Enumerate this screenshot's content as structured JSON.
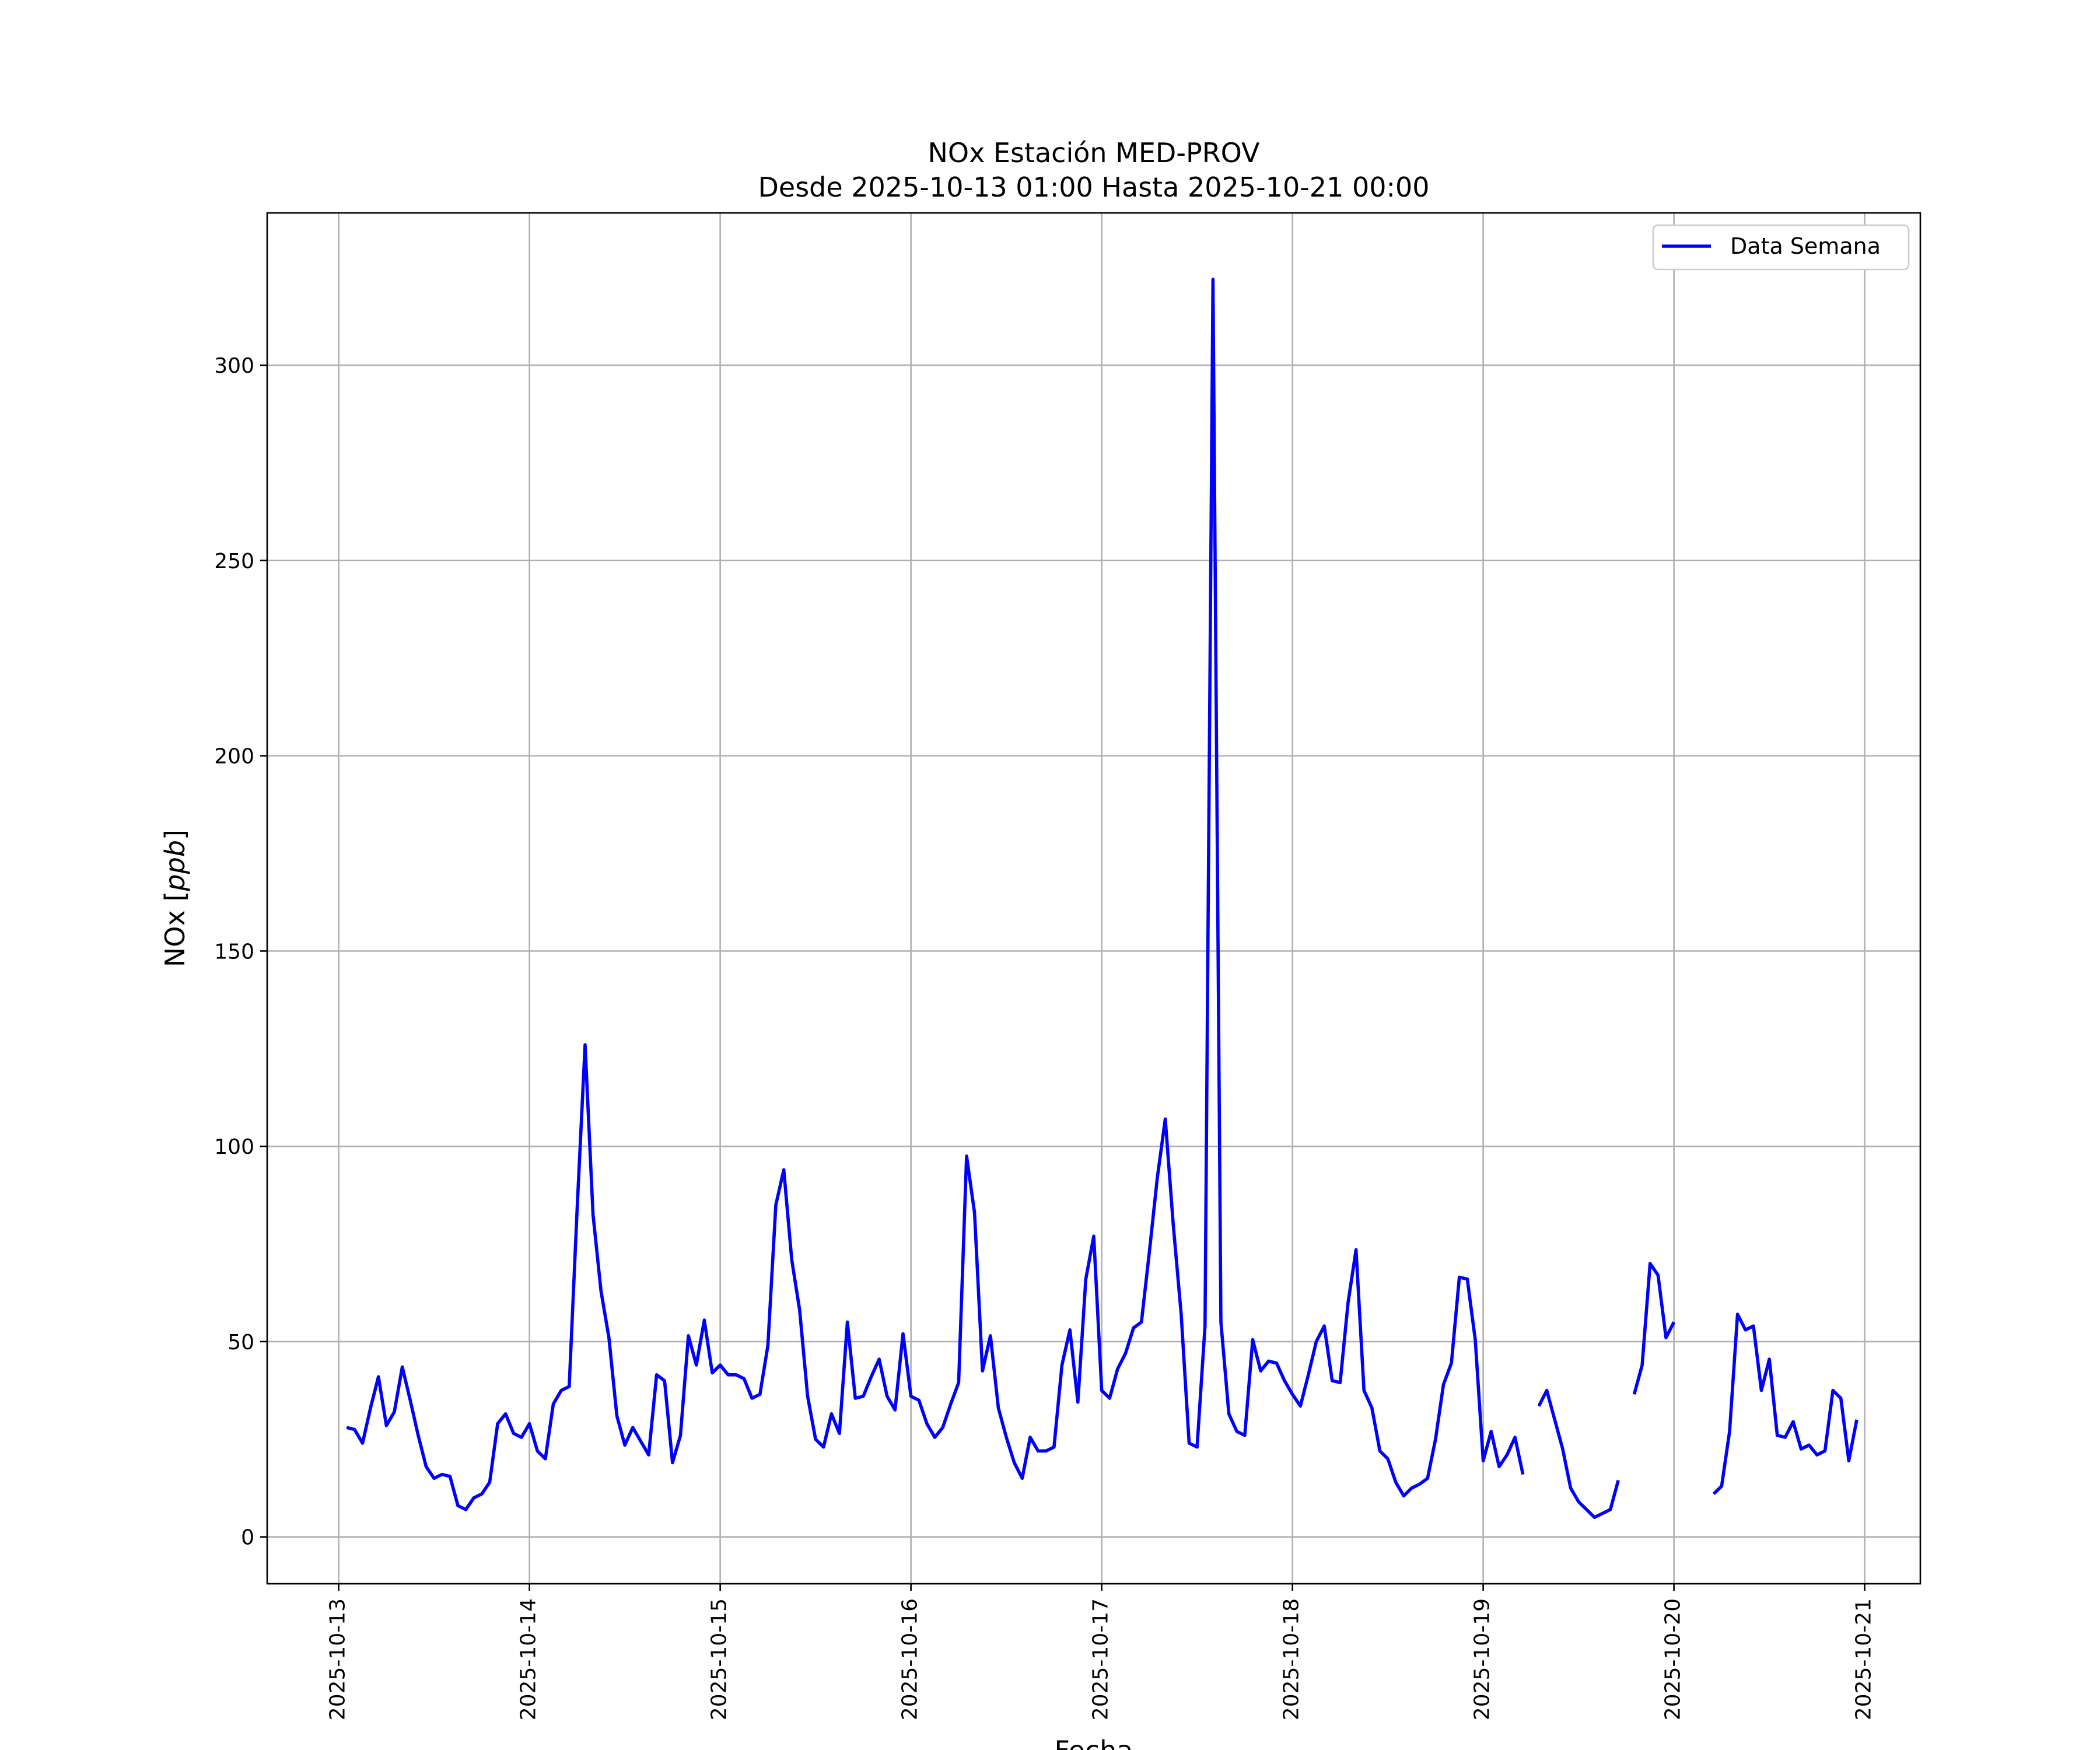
{
  "chart_data": {
    "type": "line",
    "title_line1": "NOx Estación MED-PROV",
    "title_line2": "Desde 2025-10-13 01:00 Hasta 2025-10-21 00:00",
    "xlabel": "Fecha",
    "ylabel_text": "NOx [",
    "ylabel_unit": "ppb",
    "ylabel_close": "]",
    "xlim": [
      "2025-10-12 15:00",
      "2025-10-21 07:00"
    ],
    "ylim": [
      -12,
      339
    ],
    "x_ticks": [
      "2025-10-13",
      "2025-10-14",
      "2025-10-15",
      "2025-10-16",
      "2025-10-17",
      "2025-10-18",
      "2025-10-19",
      "2025-10-20",
      "2025-10-21"
    ],
    "y_ticks": [
      0,
      50,
      100,
      150,
      200,
      250,
      300
    ],
    "grid": true,
    "legend_position": "top-right",
    "series": [
      {
        "name": "Data Semana",
        "color": "#0000ff",
        "x_start": "2025-10-13 01:00",
        "x_step_hours": 1,
        "values": [
          28,
          27.5,
          24,
          33,
          41,
          28.5,
          32,
          43.5,
          35,
          26,
          18,
          15,
          16,
          15.5,
          8,
          7,
          10,
          11,
          14,
          29,
          31.5,
          26.5,
          25.5,
          29,
          22,
          20,
          34,
          37.5,
          38.5,
          84,
          126,
          82.5,
          63,
          51,
          31,
          23.5,
          28,
          24.5,
          21,
          41.5,
          40,
          19,
          26,
          51.5,
          44,
          55.5,
          42,
          44,
          41.5,
          41.5,
          40.5,
          35.5,
          36.5,
          49,
          85,
          94,
          71,
          58,
          36,
          25,
          23,
          31.5,
          26.5,
          55,
          35.5,
          36,
          41,
          45.5,
          36,
          32.5,
          52,
          36,
          35,
          29,
          25.5,
          28,
          34,
          39.5,
          97.5,
          83,
          42.5,
          51.5,
          33,
          25.5,
          19,
          15,
          25.5,
          22,
          22,
          23,
          44,
          53,
          34.5,
          66,
          77,
          37.5,
          35.5,
          43,
          47,
          53.5,
          55,
          73,
          92,
          107,
          80,
          57,
          24,
          23,
          54,
          322,
          55,
          31.5,
          27,
          26,
          50.5,
          42.5,
          45,
          44.5,
          40,
          36.5,
          33.5,
          41.5,
          50,
          54,
          40,
          39.5,
          60,
          73.5,
          37.5,
          33,
          22,
          20,
          14,
          10.5,
          12.5,
          13.5,
          15,
          25,
          39,
          44.5,
          66.5,
          66,
          50.5,
          19.5,
          27,
          18,
          21,
          25.5,
          16,
          null,
          33.5,
          37.5,
          30,
          22.5,
          12.5,
          9,
          7,
          5,
          6,
          7,
          14.5,
          null,
          36.5,
          44,
          70,
          67,
          51,
          55,
          null,
          null,
          null,
          null,
          11,
          13,
          27,
          57,
          53,
          54,
          37.5,
          45.5,
          26,
          25.5,
          29.5,
          22.5,
          23.5,
          21,
          22,
          37.5,
          35.5,
          19.5,
          30
        ]
      }
    ]
  }
}
